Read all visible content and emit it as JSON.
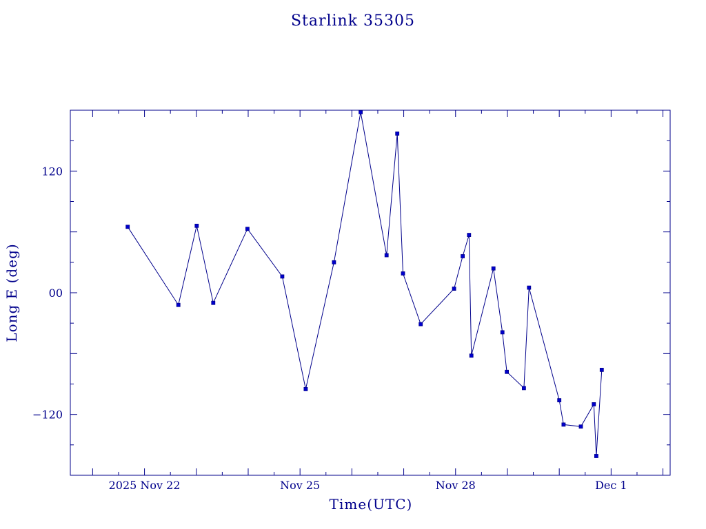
{
  "chart_data": {
    "type": "line",
    "title": "Starlink 35305",
    "xlabel": "Time(UTC)",
    "ylabel": "Long E (deg)",
    "xlim": [
      "2025-11-20T13:40:00",
      "2025-12-02T03:20:00"
    ],
    "ylim": [
      -180,
      180
    ],
    "x_tick_labels": [
      {
        "at": "2025-11-22T00:00:00",
        "label": "2025 Nov 22"
      },
      {
        "at": "2025-11-25T00:00:00",
        "label": "Nov 25"
      },
      {
        "at": "2025-11-28T00:00:00",
        "label": "Nov 28"
      },
      {
        "at": "2025-12-01T00:00:00",
        "label": "Dec  1"
      }
    ],
    "y_tick_labels": [
      {
        "at": 120,
        "label": "120"
      },
      {
        "at": 0,
        "label": "00"
      },
      {
        "at": -120,
        "label": "−120"
      }
    ],
    "marker": "square",
    "grid": false,
    "series": [
      {
        "x": [
          "2025-11-21T16:13:00",
          "2025-11-22T15:40:00",
          "2025-11-23T00:10:00",
          "2025-11-23T07:50:00",
          "2025-11-23T23:40:00",
          "2025-11-24T15:47:00",
          "2025-11-25T02:38:00",
          "2025-11-25T15:43:00",
          "2025-11-26T04:03:00",
          "2025-11-26T16:03:00",
          "2025-11-26T21:00:00",
          "2025-11-26T23:39:00",
          "2025-11-27T07:51:00",
          "2025-11-27T23:19:00",
          "2025-11-28T03:18:00",
          "2025-11-28T06:14:00",
          "2025-11-28T07:20:00",
          "2025-11-28T17:32:00",
          "2025-11-28T21:41:00",
          "2025-11-28T23:43:00",
          "2025-11-29T07:39:00",
          "2025-11-29T10:00:00",
          "2025-11-30T00:00:00",
          "2025-11-30T02:00:00",
          "2025-11-30T10:00:00",
          "2025-11-30T16:00:00",
          "2025-11-30T17:10:00",
          "2025-11-30T19:40:00"
        ],
        "y": [
          65,
          -12,
          66,
          -10,
          63,
          16,
          -95,
          30,
          178,
          37,
          157,
          19,
          -31,
          4,
          36,
          57,
          -62,
          24,
          -39,
          -78,
          -94,
          5,
          -106,
          -130,
          -132,
          -110,
          -161,
          -76
        ]
      }
    ]
  }
}
